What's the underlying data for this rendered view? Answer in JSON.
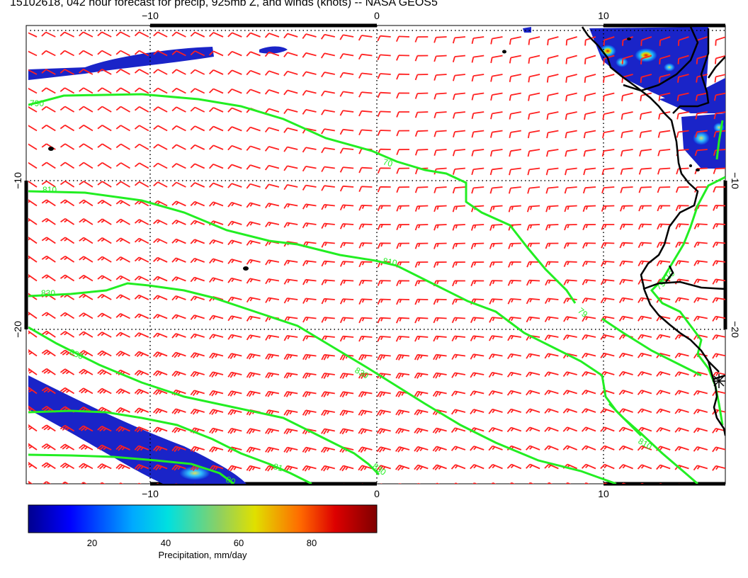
{
  "title": "15102618, 042 hour forecast for precip, 925mb Z, and winds (knots) -- NASA GEOS5",
  "map": {
    "lon_ticks": [
      {
        "value": -10,
        "label": "−10"
      },
      {
        "value": 0,
        "label": "0"
      },
      {
        "value": 10,
        "label": "10"
      }
    ],
    "lat_ticks": [
      {
        "value": -10,
        "label": "−10"
      },
      {
        "value": -20,
        "label": "−20"
      }
    ],
    "contour_color": "#22ee22",
    "barb_color": "#ff2020",
    "coast_color": "#000000",
    "contour_labels": [
      "790",
      "810",
      "830",
      "70",
      "810",
      "79",
      "830",
      "830",
      "81",
      "830",
      "810",
      "80",
      "79",
      "810"
    ]
  },
  "colorbar": {
    "ticks": [
      "20",
      "40",
      "60",
      "80"
    ],
    "label": "Precipitation, mm/day"
  },
  "chart_data": {
    "type": "heatmap",
    "title": "15102618, 042 hour forecast for precip, 925mb Z, and winds (knots) -- NASA GEOS5",
    "xlabel": "",
    "ylabel": "",
    "x_ticks": [
      -10,
      0,
      10
    ],
    "y_ticks": [
      -10,
      -20
    ],
    "colorbar_range": [
      0,
      95
    ],
    "colorbar_ticks": [
      20,
      40,
      60,
      80
    ],
    "colorbar_label": "Precipitation, mm/day",
    "contour_levels": [
      790,
      810,
      830
    ],
    "grid": true
  }
}
